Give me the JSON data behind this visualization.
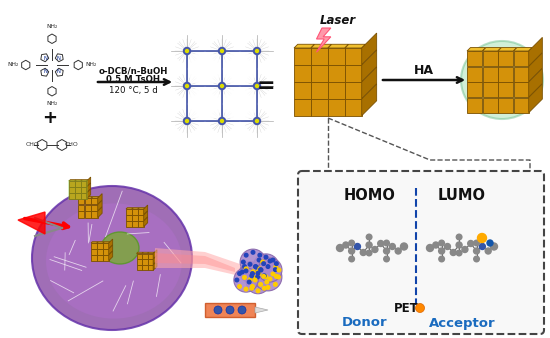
{
  "background_color": "#ffffff",
  "figsize": [
    5.5,
    3.38
  ],
  "dpi": 100,
  "reaction_arrow_text_line1": "o-DCB/n-BuOH",
  "reaction_arrow_text_line2": "0.5 M TsOH",
  "reaction_arrow_text_line3": "120 °C, 5 d",
  "ha_arrow_text": "HA",
  "laser_text": "Laser",
  "homo_text": "HOMO",
  "lumo_text": "LUMO",
  "pet_text": "PET",
  "donor_text": "Donor",
  "acceptor_text": "Acceptor",
  "plus_text": "+",
  "equals_text": "=",
  "text_color_blue": "#1a6bbf",
  "text_color_black": "#111111",
  "arrow_color": "#222222",
  "dashed_box_color": "#444444",
  "gold_front": "#D4920A",
  "gold_top": "#F0C030",
  "gold_right": "#A87000",
  "gold_edge": "#7A5000",
  "dot_blue": "#2244AA",
  "cell_outer": "#9060AA",
  "cell_inner": "#C090DD",
  "nucleus_color": "#88AA44",
  "mof_frame_color": "#4455AA",
  "laser_bolt_color": "#FF8899"
}
